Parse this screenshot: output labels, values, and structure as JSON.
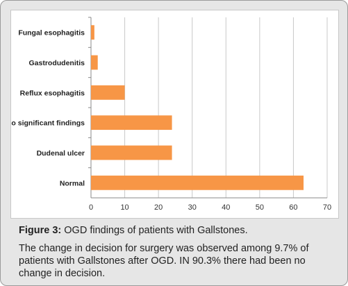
{
  "chart_data": {
    "type": "bar",
    "orientation": "horizontal",
    "categories": [
      "Fungal esophagitis",
      "Gastrodudenitis",
      "Reflux esophagitis",
      "No significant findings",
      "Dudenal ulcer",
      "Normal"
    ],
    "values": [
      1,
      2,
      10,
      24,
      24,
      63
    ],
    "xlim": [
      0,
      70
    ],
    "xticks": [
      0,
      10,
      20,
      30,
      40,
      50,
      60,
      70
    ],
    "grid": true,
    "bar_color": "#f79646"
  },
  "caption": {
    "figure_label": "Figure 3:",
    "title": "OGD findings of patients with Gallstones.",
    "description": "The change in decision for surgery was observed among 9.7% of patients with Gallstones after OGD. IN 90.3% there had been no change in decision."
  }
}
